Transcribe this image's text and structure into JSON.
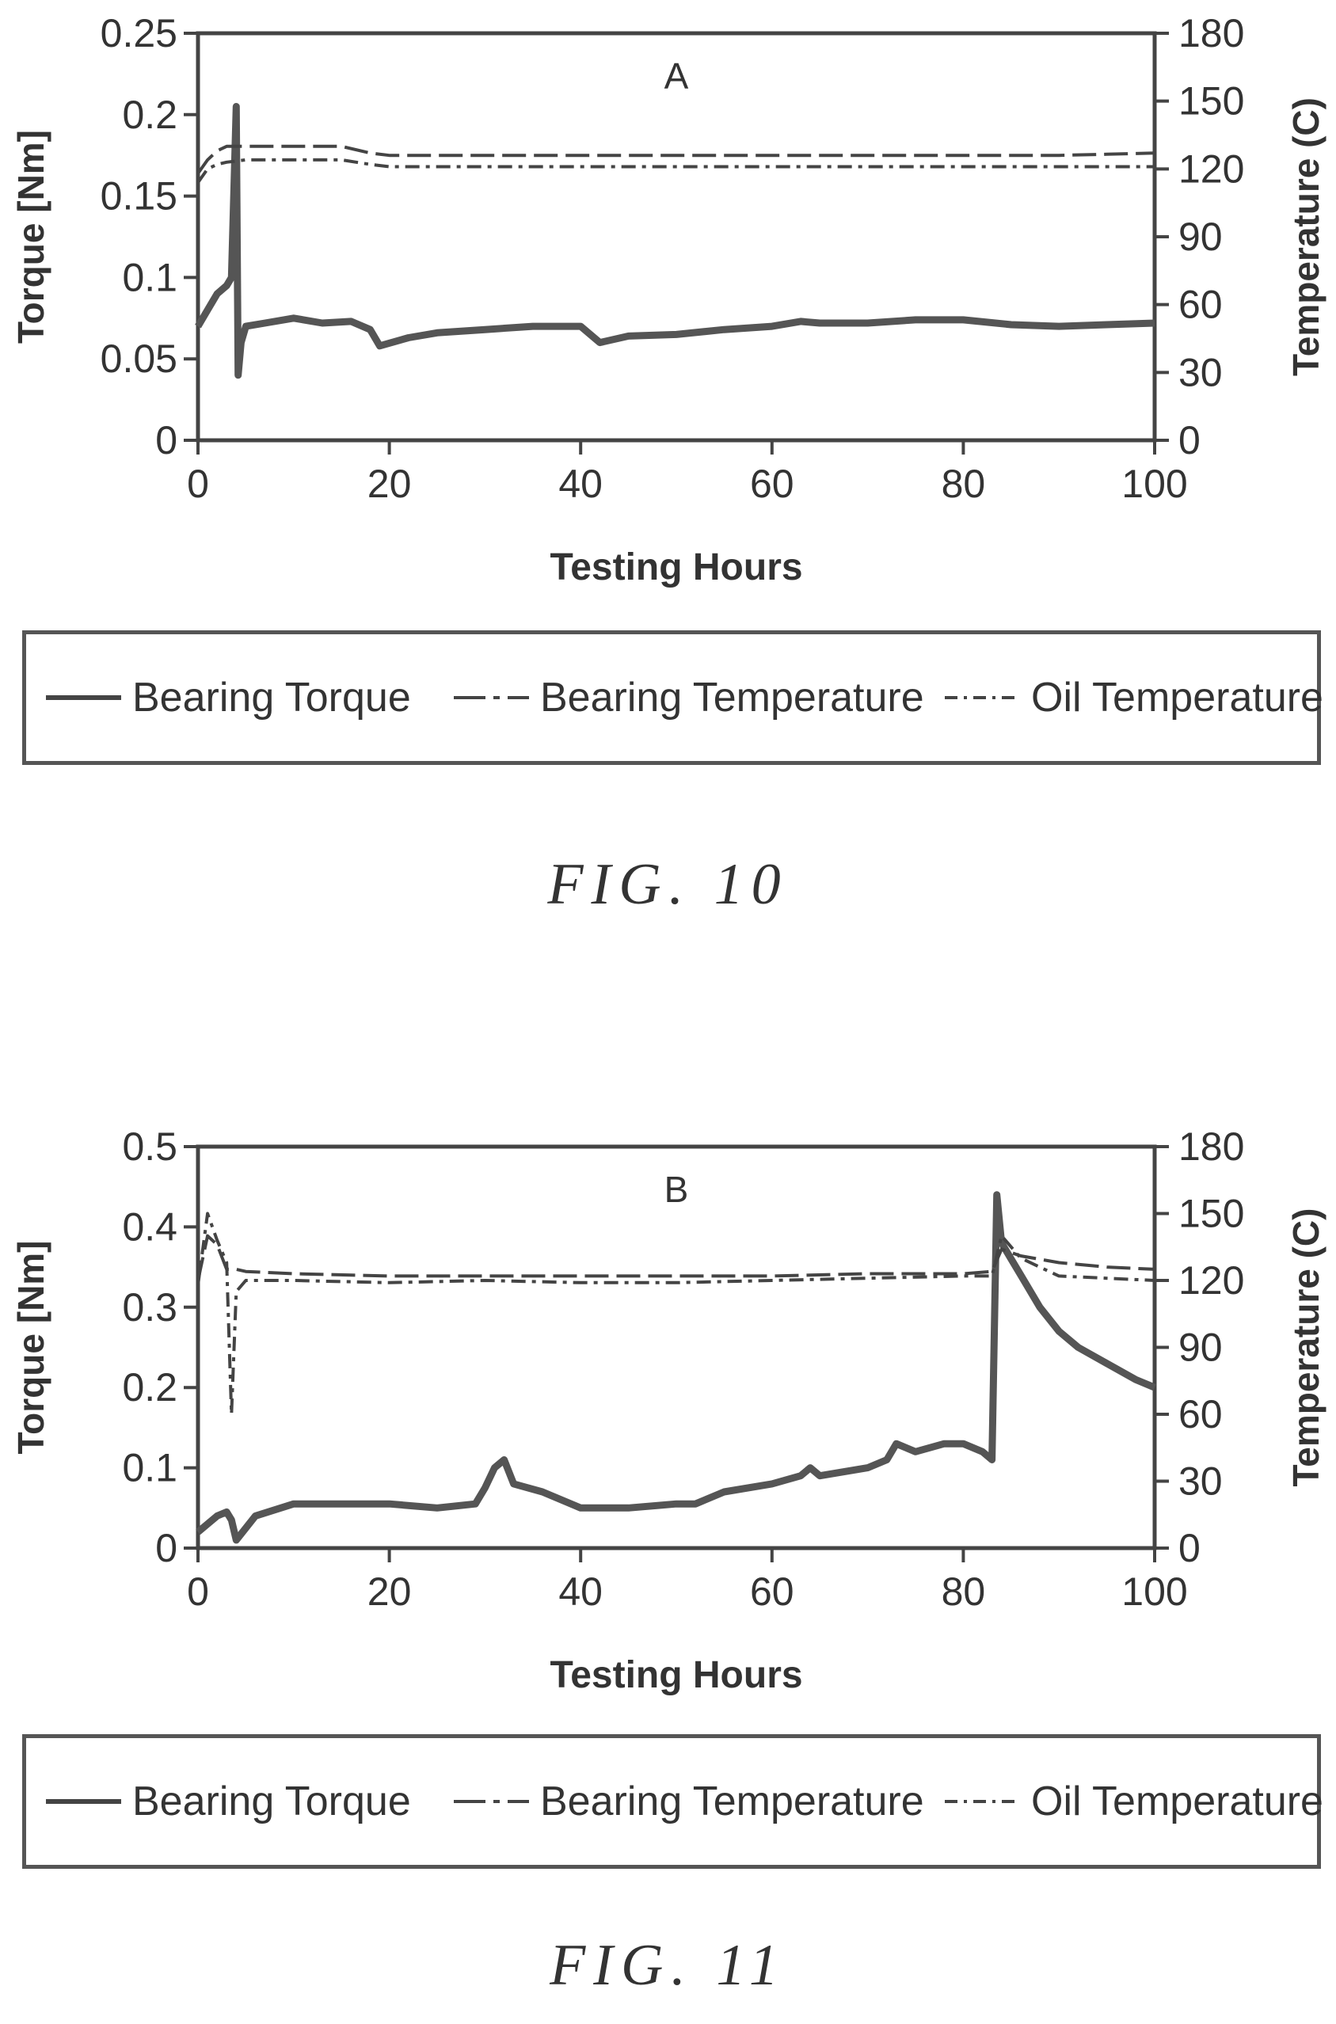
{
  "figures": [
    {
      "caption": "FIG. 10",
      "legend": [
        "Bearing Torque",
        "Bearing Temperature",
        "Oil Temperature"
      ]
    },
    {
      "caption": "FIG. 11",
      "legend": [
        "Bearing Torque",
        "Bearing Temperature",
        "Oil Temperature"
      ]
    }
  ],
  "chart_data": [
    {
      "type": "line",
      "title": "A",
      "xlabel": "Testing Hours",
      "ylabel": "Torque [Nm]",
      "y2label": "Temperature (C)",
      "xlim": [
        0,
        100
      ],
      "ylim": [
        0,
        0.25
      ],
      "y2lim": [
        0,
        180
      ],
      "xticks": [
        "0",
        "20",
        "40",
        "60",
        "80",
        "100"
      ],
      "yticks": [
        "0",
        "0.05",
        "0.1",
        "0.15",
        "0.2",
        "0.25"
      ],
      "y2ticks": [
        "0",
        "30",
        "60",
        "90",
        "120",
        "150",
        "180"
      ],
      "legend_position": "below",
      "series": [
        {
          "name": "Bearing Torque",
          "axis": "left",
          "style": "solid",
          "x": [
            0,
            1,
            2,
            3,
            3.5,
            4,
            4.2,
            4.5,
            5,
            7,
            10,
            13,
            16,
            18,
            19,
            22,
            25,
            30,
            35,
            40,
            42,
            45,
            50,
            55,
            60,
            63,
            65,
            70,
            75,
            80,
            85,
            90,
            95,
            100
          ],
          "y": [
            0.07,
            0.08,
            0.09,
            0.095,
            0.1,
            0.205,
            0.04,
            0.06,
            0.07,
            0.072,
            0.075,
            0.072,
            0.073,
            0.068,
            0.058,
            0.063,
            0.066,
            0.068,
            0.07,
            0.07,
            0.06,
            0.064,
            0.065,
            0.068,
            0.07,
            0.073,
            0.072,
            0.072,
            0.074,
            0.074,
            0.071,
            0.07,
            0.071,
            0.072
          ]
        },
        {
          "name": "Bearing Temperature",
          "axis": "right",
          "style": "dashed",
          "x": [
            0,
            1,
            2,
            3,
            5,
            10,
            15,
            18,
            20,
            30,
            40,
            50,
            60,
            70,
            80,
            90,
            100
          ],
          "y": [
            118,
            124,
            128,
            130,
            130,
            130,
            130,
            127,
            126,
            126,
            126,
            126,
            126,
            126,
            126,
            126,
            127
          ]
        },
        {
          "name": "Oil Temperature",
          "axis": "right",
          "style": "dashdot",
          "x": [
            0,
            1,
            2,
            3,
            5,
            10,
            15,
            18,
            20,
            30,
            40,
            50,
            60,
            70,
            80,
            90,
            100
          ],
          "y": [
            114,
            120,
            122,
            123,
            124,
            124,
            124,
            122,
            121,
            121,
            121,
            121,
            121,
            121,
            121,
            121,
            121
          ]
        }
      ]
    },
    {
      "type": "line",
      "title": "B",
      "xlabel": "Testing Hours",
      "ylabel": "Torque [Nm]",
      "y2label": "Temperature (C)",
      "xlim": [
        0,
        100
      ],
      "ylim": [
        0,
        0.5
      ],
      "y2lim": [
        0,
        180
      ],
      "xticks": [
        "0",
        "20",
        "40",
        "60",
        "80",
        "100"
      ],
      "yticks": [
        "0",
        "0.1",
        "0.2",
        "0.3",
        "0.4",
        "0.5"
      ],
      "y2ticks": [
        "0",
        "30",
        "60",
        "90",
        "120",
        "150",
        "180"
      ],
      "legend_position": "below",
      "series": [
        {
          "name": "Bearing Torque",
          "axis": "left",
          "style": "solid",
          "x": [
            0,
            1,
            2,
            3,
            3.5,
            4,
            6,
            10,
            15,
            20,
            25,
            29,
            30,
            31,
            32,
            33,
            36,
            40,
            45,
            50,
            52,
            55,
            60,
            63,
            64,
            65,
            70,
            72,
            73,
            75,
            78,
            80,
            82,
            83,
            83.5,
            84,
            86,
            88,
            90,
            92,
            95,
            98,
            100
          ],
          "y": [
            0.02,
            0.03,
            0.04,
            0.045,
            0.035,
            0.01,
            0.04,
            0.055,
            0.055,
            0.055,
            0.05,
            0.055,
            0.075,
            0.1,
            0.11,
            0.08,
            0.07,
            0.05,
            0.05,
            0.055,
            0.055,
            0.07,
            0.08,
            0.09,
            0.1,
            0.09,
            0.1,
            0.11,
            0.13,
            0.12,
            0.13,
            0.13,
            0.12,
            0.11,
            0.44,
            0.38,
            0.34,
            0.3,
            0.27,
            0.25,
            0.23,
            0.21,
            0.2
          ]
        },
        {
          "name": "Bearing Temperature",
          "axis": "right",
          "style": "dashed",
          "x": [
            0,
            1,
            2,
            3,
            4,
            5,
            10,
            20,
            30,
            40,
            50,
            60,
            70,
            80,
            83,
            84,
            86,
            90,
            95,
            100
          ],
          "y": [
            120,
            140,
            136,
            125,
            125,
            124,
            123,
            122,
            122,
            122,
            122,
            122,
            123,
            123,
            124,
            134,
            131,
            128,
            126,
            125
          ]
        },
        {
          "name": "Oil Temperature",
          "axis": "right",
          "style": "dashdot",
          "x": [
            0,
            1,
            2,
            3,
            3.5,
            4,
            5,
            10,
            20,
            30,
            40,
            50,
            60,
            70,
            80,
            83,
            84,
            86,
            88,
            90,
            95,
            100
          ],
          "y": [
            118,
            150,
            138,
            128,
            60,
            115,
            120,
            120,
            119,
            120,
            119,
            119,
            120,
            121,
            122,
            122,
            140,
            130,
            126,
            122,
            121,
            120
          ]
        }
      ]
    }
  ]
}
